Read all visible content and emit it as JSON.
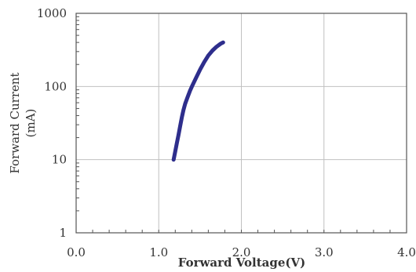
{
  "chart_data": {
    "type": "line",
    "title": "",
    "xlabel": "Forward Voltage(V)",
    "ylabel": [
      "Forward Current",
      "(mA)"
    ],
    "xlim": [
      0,
      4
    ],
    "ylim": [
      1,
      1000
    ],
    "yscale": "log",
    "grid": true,
    "x_ticks": [
      "0.0",
      "1.0",
      "2.0",
      "3.0",
      "4.0"
    ],
    "y_ticks": [
      "1",
      "10",
      "100",
      "1000"
    ],
    "series_color": "#2e2e8c",
    "grid_color": "#c0c0c0",
    "series": [
      {
        "x": [
          1.18,
          1.2,
          1.22,
          1.24,
          1.26,
          1.28,
          1.3,
          1.32,
          1.35,
          1.38,
          1.41,
          1.45,
          1.5,
          1.55,
          1.6,
          1.65,
          1.7,
          1.75,
          1.78
        ],
        "y": [
          10,
          13,
          17,
          22,
          29,
          38,
          48,
          58,
          72,
          88,
          105,
          130,
          170,
          215,
          265,
          310,
          350,
          385,
          400
        ]
      }
    ]
  }
}
